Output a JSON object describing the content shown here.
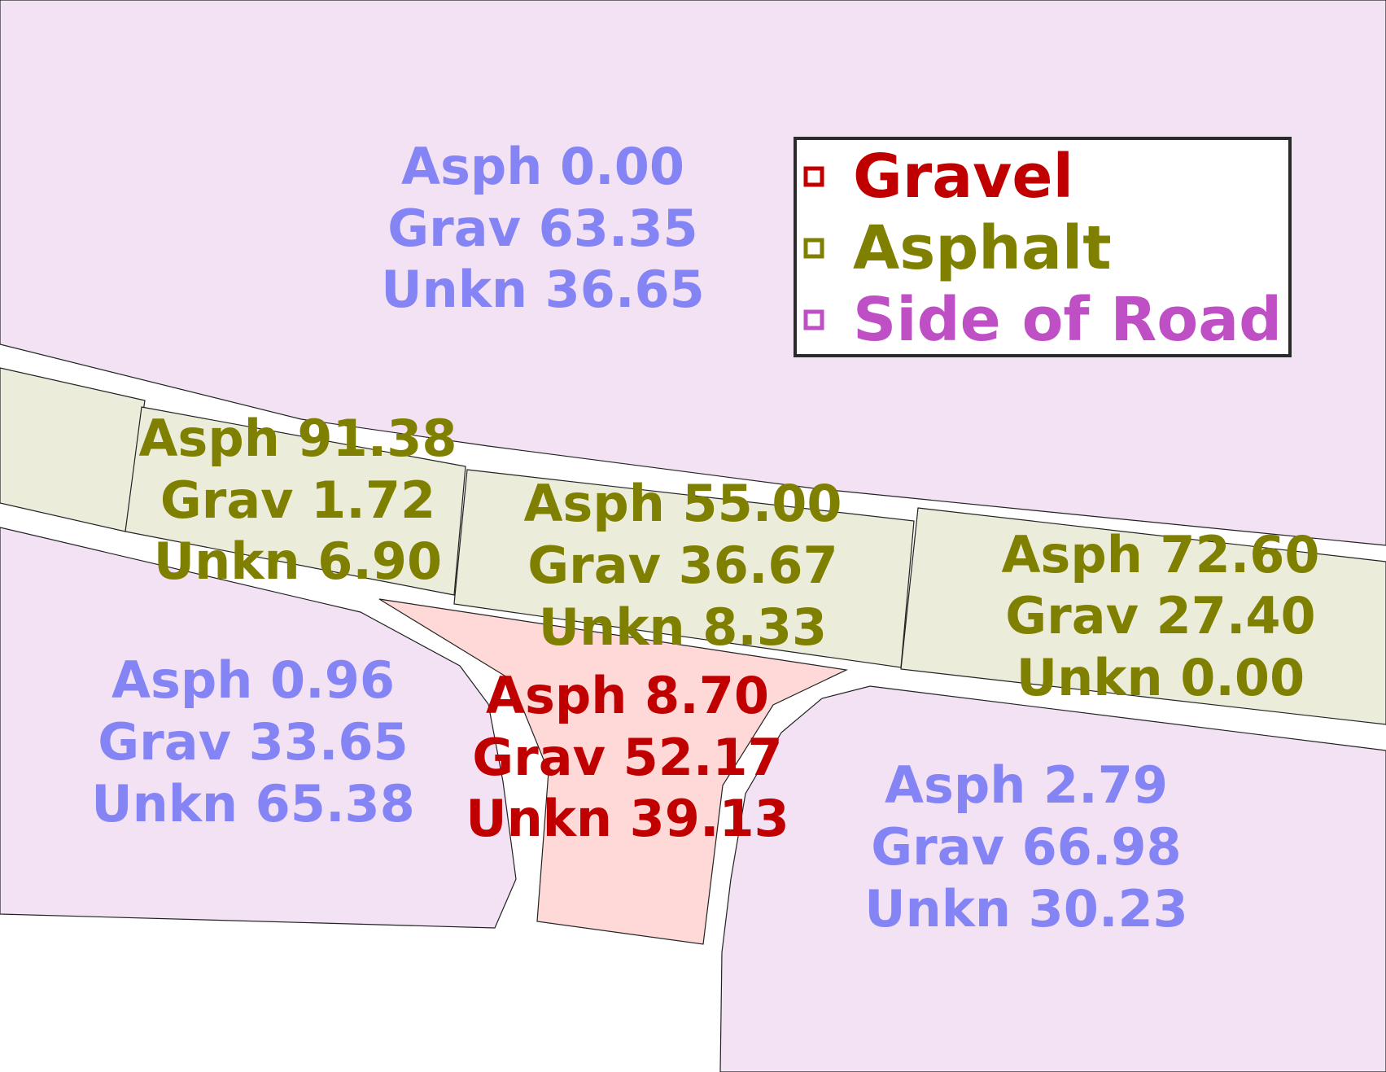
{
  "colors": {
    "side_of_road": "#bf4fc4",
    "asphalt": "#7f7f00",
    "gravel": "#c00000",
    "unknown_label": "#8484f5",
    "side_fill": "#f3e1f4",
    "asphalt_fill": "#ececdb",
    "gravel_fill": "#ffd8d8"
  },
  "legend": {
    "items": [
      {
        "label": "Gravel",
        "color": "#c00000",
        "icon": "square-marker-icon"
      },
      {
        "label": "Asphalt",
        "color": "#7f7f00",
        "icon": "square-marker-icon"
      },
      {
        "label": "Side of Road",
        "color": "#bf4fc4",
        "icon": "square-marker-icon"
      }
    ]
  },
  "regions": {
    "side_north": {
      "class": "Side of Road",
      "asph": "Asph 0.00",
      "grav": "Grav 63.35",
      "unkn": "Unkn 36.65"
    },
    "side_southwest": {
      "class": "Side of Road",
      "asph": "Asph 0.96",
      "grav": "Grav 33.65",
      "unkn": "Unkn 65.38"
    },
    "side_southeast": {
      "class": "Side of Road",
      "asph": "Asph 2.79",
      "grav": "Grav 66.98",
      "unkn": "Unkn 30.23"
    },
    "asphalt_1": {
      "class": "Asphalt",
      "asph": "Asph 91.38",
      "grav": "Grav 1.72",
      "unkn": "Unkn 6.90"
    },
    "asphalt_2": {
      "class": "Asphalt",
      "asph": "Asph 55.00",
      "grav": "Grav 36.67",
      "unkn": "Unkn 8.33"
    },
    "asphalt_3": {
      "class": "Asphalt",
      "asph": "Asph 72.60",
      "grav": "Grav 27.40",
      "unkn": "Unkn 0.00"
    },
    "gravel_1": {
      "class": "Gravel",
      "asph": "Asph 8.70",
      "grav": "Grav 52.17",
      "unkn": "Unkn 39.13"
    }
  }
}
